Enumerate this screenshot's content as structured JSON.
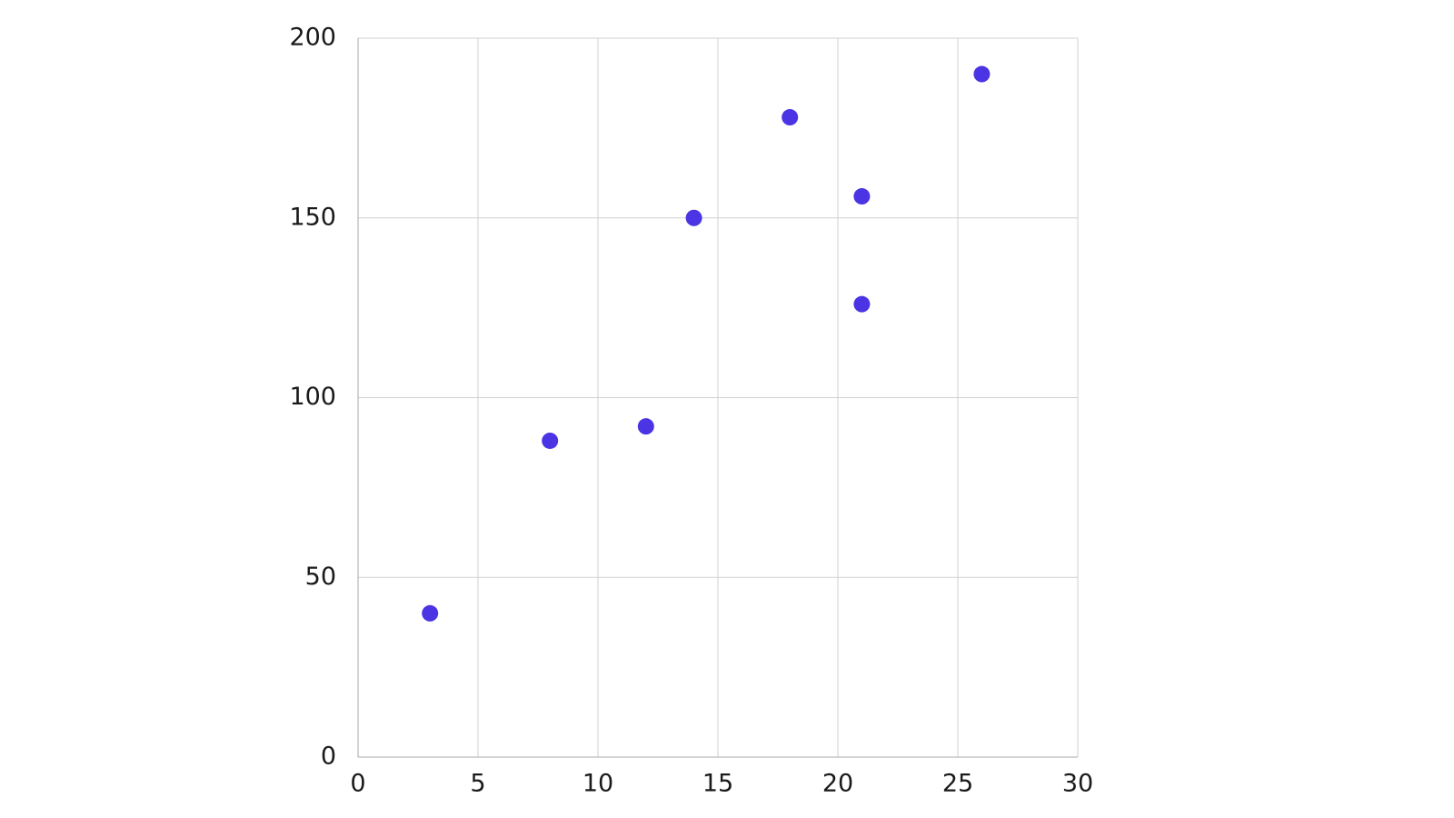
{
  "chart_data": {
    "type": "scatter",
    "series": [
      {
        "color": "#4a34e4",
        "x": [
          3,
          8,
          12,
          14,
          18,
          21,
          21,
          26
        ],
        "values": [
          40,
          88,
          92,
          150,
          178,
          156,
          126,
          190
        ]
      }
    ],
    "xlim": [
      0,
      30
    ],
    "xticks": [
      0,
      5,
      10,
      15,
      20,
      25,
      30
    ],
    "ylim": [
      0,
      200
    ],
    "yticks": [
      0,
      50,
      100,
      150,
      200
    ],
    "grid": true
  }
}
